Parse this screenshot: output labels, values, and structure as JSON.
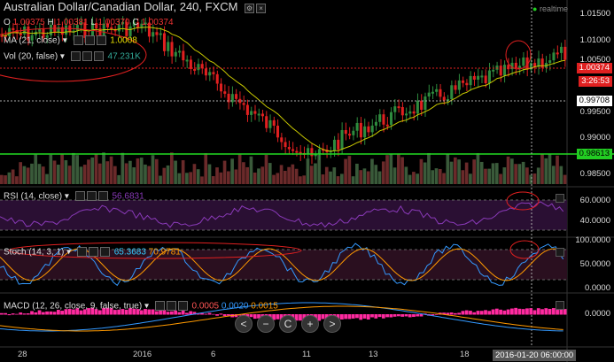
{
  "header": {
    "title": "Australian Dollar/Canadian Dollar, 240, FXCM",
    "realtime": "realtime",
    "ohlc": {
      "o_label": "O",
      "o_value": "1.00375",
      "h_label": "H",
      "h_value": "1.00381",
      "l_label": "L",
      "l_value": "1.00370",
      "c_label": "C",
      "c_value": "1.00374"
    }
  },
  "indicators": {
    "ma": {
      "label": "MA (21, close)",
      "value": "1.0008"
    },
    "vol": {
      "label": "Vol (20, false)",
      "value": "47.231K"
    },
    "rsi": {
      "label": "RSI (14, close)",
      "value": "56.6831"
    },
    "stoch": {
      "label": "Stoch (14, 3, 1)",
      "k": "65.3683",
      "d": "70.9781"
    },
    "macd": {
      "label": "MACD (12, 26, close, 9, false, true)",
      "hist": "0.0005",
      "macd": "0.0020",
      "signal": "0.0015"
    }
  },
  "price_axis": {
    "ticks": [
      "1.01500",
      "1.01000",
      "1.00500",
      "0.99500",
      "0.99000",
      "0.98500"
    ],
    "last_price": "1.00374",
    "countdown": "3:26:53",
    "crosshair_price": "0.99708",
    "green_line_price": "0.98613"
  },
  "rsi_axis": {
    "ticks": [
      "60.0000",
      "40.0000"
    ]
  },
  "stoch_axis": {
    "ticks": [
      "100.0000",
      "50.0000",
      "0.0000"
    ]
  },
  "macd_axis": {
    "ticks": [
      "0.0000"
    ]
  },
  "time_axis": {
    "labels": [
      "28",
      "2016",
      "6",
      "11",
      "13",
      "18"
    ],
    "crosshair_time": "2016-01-20 06:00:00"
  },
  "nav_buttons": {
    "back": "<",
    "minus": "−",
    "reset": "C",
    "plus": "+",
    "forward": ">"
  },
  "colors": {
    "up": "#2e8b3e",
    "down": "#e02020",
    "ma": "#c8c800",
    "rsi": "#8a3ab9",
    "stoch_k": "#39f",
    "stoch_d": "#f90",
    "macd_hist": "#ff2aa0",
    "highlight": "#e02020",
    "green_level": "#22dd22"
  }
}
